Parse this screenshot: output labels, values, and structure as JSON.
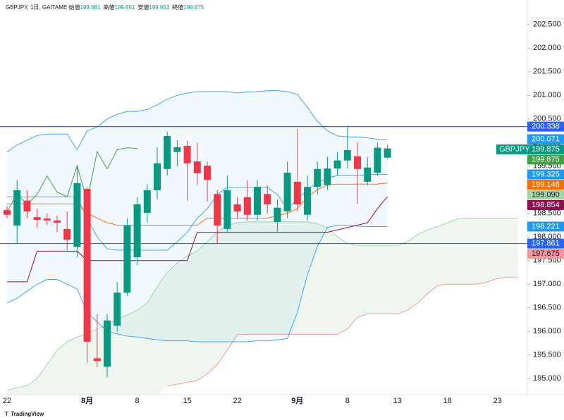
{
  "header": {
    "symbol": "GBPJPY, 1日, GAITAME",
    "items": [
      {
        "label": "始値",
        "value": "199.681"
      },
      {
        "label": "高値",
        "value": "199.951"
      },
      {
        "label": "安値",
        "value": "199.653"
      },
      {
        "label": "終値",
        "value": "199.875"
      }
    ]
  },
  "footer": "TradingView",
  "chart_data": {
    "type": "candlestick",
    "up_color": "#089981",
    "down_color": "#f23645",
    "ylim": [
      194.66,
      203.02
    ],
    "yticks": [
      {
        "value": 195,
        "label": "195.000"
      },
      {
        "value": 195.5,
        "label": "195.500"
      },
      {
        "value": 196,
        "label": "196.000"
      },
      {
        "value": 196.5,
        "label": "196.500"
      },
      {
        "value": 197,
        "label": "197.000"
      },
      {
        "value": 197.5,
        "label": "197.500"
      },
      {
        "value": 198,
        "label": "198.000"
      },
      {
        "value": 198.5,
        "label": "198.500"
      },
      {
        "value": 199,
        "label": "199.000"
      },
      {
        "value": 199.5,
        "label": "199.500"
      },
      {
        "value": 200,
        "label": "200.000"
      },
      {
        "value": 200.5,
        "label": "200.500"
      },
      {
        "value": 201,
        "label": "201.000"
      },
      {
        "value": 201.5,
        "label": "201.500"
      },
      {
        "value": 202,
        "label": "202.000"
      },
      {
        "value": 202.5,
        "label": "202.500"
      }
    ],
    "categories": [
      "22",
      null,
      null,
      null,
      null,
      null,
      null,
      null,
      "8月",
      null,
      null,
      null,
      null,
      "8",
      null,
      null,
      null,
      null,
      "15",
      null,
      null,
      null,
      null,
      "22",
      null,
      null,
      null,
      null,
      null,
      "9月",
      null,
      null,
      null,
      null,
      "8",
      null,
      null,
      null,
      null,
      "13",
      null,
      null,
      null,
      null,
      "18",
      null,
      null,
      null,
      null,
      "23",
      null,
      null
    ],
    "open": [
      198.57,
      198.24,
      198.77,
      198.42,
      198.39,
      198.35,
      198.17,
      197.79,
      199.02,
      195.43,
      195.25,
      196.12,
      196.82,
      197.57,
      198.51,
      198.99,
      199.44,
      199.8,
      199.93,
      199.6,
      199.51,
      198.91,
      198.17,
      198.69,
      198.84,
      198.47,
      198.91,
      198.32,
      198.54,
      199.17,
      198.47,
      199.06,
      199.1,
      199.45,
      199.62,
      199.71,
      199.17,
      199.36,
      199.681,
      null,
      null,
      null,
      null,
      null,
      null,
      null,
      null,
      null,
      null,
      null,
      null,
      null
    ],
    "high": [
      198.65,
      199.21,
      198.99,
      198.6,
      198.5,
      198.45,
      198.54,
      199.51,
      199.06,
      196.37,
      196.37,
      197.05,
      198.39,
      198.84,
      199.12,
      199.9,
      200.23,
      200.05,
      200.04,
      200.0,
      199.6,
      199.0,
      199.3,
      198.84,
      199.2,
      199.2,
      199.1,
      198.8,
      199.6,
      200.29,
      199.3,
      199.6,
      199.7,
      199.8,
      200.33,
      200.0,
      199.7,
      200.0,
      199.951,
      null,
      null,
      null,
      null,
      null,
      null,
      null,
      null,
      null,
      null,
      null,
      null,
      null
    ],
    "low": [
      198.4,
      197.87,
      198.39,
      198.2,
      198.25,
      198.1,
      197.72,
      197.57,
      195.33,
      195.25,
      195.03,
      196.0,
      196.75,
      197.4,
      198.3,
      198.8,
      199.3,
      199.5,
      198.77,
      199.1,
      198.75,
      197.87,
      198.1,
      198.4,
      198.35,
      198.35,
      198.5,
      198.1,
      198.4,
      198.55,
      198.35,
      198.9,
      199.0,
      199.3,
      199.45,
      198.7,
      199.1,
      199.3,
      199.653,
      null,
      null,
      null,
      null,
      null,
      null,
      null,
      null,
      null,
      null,
      null,
      null,
      null
    ],
    "close": [
      198.47,
      198.99,
      198.54,
      198.36,
      198.35,
      198.3,
      197.94,
      199.14,
      195.78,
      195.37,
      196.23,
      196.82,
      198.24,
      198.69,
      198.99,
      199.56,
      200.14,
      199.9,
      199.56,
      199.35,
      199.21,
      198.24,
      198.99,
      198.54,
      198.47,
      199.06,
      198.69,
      198.62,
      199.36,
      198.69,
      199.06,
      199.44,
      199.45,
      199.62,
      199.84,
      199.44,
      199.47,
      199.89,
      199.875,
      null,
      null,
      null,
      null,
      null,
      null,
      null,
      null,
      null,
      null,
      null,
      null,
      null
    ],
    "bollinger": {
      "line_color": "#42a5f5",
      "fill": "rgba(33,150,243,0.06)",
      "upper": [
        199.8,
        199.95,
        200.05,
        200.15,
        200.18,
        200.18,
        200.18,
        199.85,
        200.25,
        200.33,
        200.5,
        200.6,
        200.66,
        200.66,
        200.7,
        200.8,
        200.92,
        201.0,
        201.05,
        201.08,
        201.08,
        201.08,
        201.08,
        201.05,
        201.07,
        201.08,
        201.1,
        201.1,
        201.08,
        201.02,
        200.75,
        200.45,
        200.25,
        200.14,
        200.12,
        200.12,
        200.1,
        200.07,
        200.071,
        null,
        null,
        null,
        null,
        null,
        null,
        null,
        null,
        null,
        null,
        null,
        null,
        null
      ],
      "middle": [
        198.85,
        198.85,
        198.85,
        198.85,
        198.85,
        198.85,
        198.85,
        198.85,
        198.4,
        198.0,
        197.75,
        197.72,
        197.72,
        197.72,
        197.72,
        197.72,
        197.72,
        197.9,
        198.1,
        198.4,
        198.6,
        198.9,
        199.05,
        199.05,
        199.05,
        199.05,
        199.05,
        198.9,
        198.6,
        198.8,
        199.0,
        199.15,
        199.25,
        199.3,
        199.3,
        199.3,
        199.32,
        199.33,
        199.325,
        null,
        null,
        null,
        null,
        null,
        null,
        null,
        null,
        null,
        null,
        null,
        null,
        null
      ],
      "lower": [
        196.6,
        196.7,
        196.85,
        197.0,
        197.1,
        197.1,
        197.0,
        196.9,
        196.4,
        196.2,
        196.0,
        195.95,
        195.9,
        195.88,
        195.85,
        195.82,
        195.8,
        195.8,
        195.8,
        195.78,
        195.78,
        195.78,
        195.78,
        195.78,
        195.78,
        195.8,
        195.8,
        195.82,
        195.85,
        196.4,
        197.2,
        197.8,
        198.2,
        198.25,
        198.25,
        198.23,
        198.22,
        198.22,
        198.221,
        null,
        null,
        null,
        null,
        null,
        null,
        null,
        null,
        null,
        null,
        null,
        null,
        null
      ]
    },
    "ichimoku": {
      "conversion_color": "#880e4f",
      "base_color": "#ff6d00",
      "lagging_color": "#43a047",
      "span_a_color": "#a5d6a7",
      "span_b_color": "#ef9a9a",
      "cloud_fill": "rgba(67,160,71,0.09)",
      "conversion": [
        197.05,
        197.05,
        197.05,
        197.7,
        197.7,
        197.7,
        197.7,
        197.7,
        197.5,
        197.5,
        197.5,
        197.5,
        197.5,
        197.5,
        197.5,
        197.5,
        197.5,
        197.5,
        197.5,
        198.1,
        198.1,
        198.1,
        198.1,
        198.1,
        198.1,
        198.1,
        198.1,
        198.1,
        198.1,
        198.1,
        198.1,
        198.1,
        198.1,
        198.15,
        198.2,
        198.25,
        198.3,
        198.6,
        198.854,
        null,
        null,
        null,
        null,
        null,
        null,
        null,
        null,
        null,
        null,
        null,
        null,
        null
      ],
      "base": [
        198.7,
        198.7,
        198.7,
        198.7,
        198.7,
        198.7,
        198.7,
        198.7,
        198.5,
        198.4,
        198.3,
        198.25,
        198.25,
        198.25,
        198.25,
        198.25,
        198.25,
        198.25,
        198.25,
        198.25,
        198.4,
        198.4,
        198.4,
        198.4,
        198.4,
        198.4,
        198.4,
        198.45,
        198.5,
        198.6,
        198.85,
        199.0,
        199.1,
        199.12,
        199.12,
        199.12,
        199.12,
        199.12,
        199.146,
        null,
        null,
        null,
        null,
        null,
        null,
        null,
        null,
        null,
        null,
        null,
        null,
        null
      ],
      "lagging": [
        198.54,
        198.91,
        198.69,
        198.9,
        199.29,
        198.95,
        198.85,
        199.51,
        198.77,
        199.81,
        199.44,
        199.85,
        199.89,
        199.875,
        null,
        null,
        null,
        null,
        null,
        null,
        null,
        null,
        null,
        null,
        null,
        null,
        null,
        null,
        null,
        null,
        null,
        null,
        null,
        null,
        null,
        null,
        null,
        null,
        null,
        null,
        null,
        null,
        null,
        null,
        null,
        null,
        null,
        null,
        null,
        null,
        null,
        null
      ],
      "span_a": [
        194.76,
        194.8,
        194.85,
        195.0,
        195.3,
        195.6,
        195.78,
        195.88,
        195.95,
        196.05,
        196.15,
        196.25,
        196.35,
        196.45,
        196.6,
        196.95,
        197.25,
        197.45,
        197.6,
        197.7,
        197.9,
        198.1,
        198.25,
        198.3,
        198.32,
        198.32,
        198.32,
        198.32,
        198.32,
        198.32,
        198.32,
        198.28,
        198.2,
        198.0,
        197.87,
        197.82,
        197.82,
        197.82,
        197.82,
        197.82,
        197.9,
        198.05,
        198.15,
        198.22,
        198.3,
        198.38,
        198.4,
        198.4,
        198.4,
        198.4,
        198.4,
        198.4
      ],
      "span_b": [
        null,
        null,
        null,
        null,
        null,
        null,
        null,
        null,
        null,
        null,
        null,
        null,
        null,
        null,
        null,
        null,
        194.84,
        194.88,
        194.92,
        194.96,
        195.1,
        195.3,
        195.6,
        195.93,
        195.94,
        195.94,
        195.94,
        195.94,
        195.94,
        195.94,
        195.94,
        195.94,
        195.94,
        195.94,
        196.05,
        196.3,
        196.37,
        196.37,
        196.37,
        196.37,
        196.45,
        196.6,
        196.8,
        196.97,
        197.0,
        197.0,
        197.0,
        197.0,
        197.05,
        197.12,
        197.15,
        197.15
      ]
    },
    "hlines": [
      {
        "value": 200.338,
        "color": "#2962ff"
      },
      {
        "value": 197.861,
        "color": "#2962ff"
      }
    ],
    "price_tags": [
      {
        "value": 200.338,
        "label": "200.338",
        "color": "#2962ff",
        "text_color": "#ffffff"
      },
      {
        "value": 200.071,
        "label": "200.071",
        "color": "#2196f3",
        "text_color": "#ffffff"
      },
      {
        "value": 199.875,
        "label": "199.875",
        "symbol": "GBPJPY",
        "color": "#089981",
        "text_color": "#ffffff"
      },
      {
        "value": 199.875,
        "label": "199.875",
        "color": "#43a047",
        "text_color": "#ffffff"
      },
      {
        "value": 199.325,
        "label": "199.325",
        "color": "#2196f3",
        "text_color": "#ffffff"
      },
      {
        "value": 199.146,
        "label": "199.146",
        "color": "#ff6d00",
        "text_color": "#ffffff"
      },
      {
        "value": 199.09,
        "label": "199.090",
        "color": "#a5d6a7",
        "text_color": "#131722"
      },
      {
        "value": 198.854,
        "label": "198.854",
        "color": "#880e4f",
        "text_color": "#ffffff"
      },
      {
        "value": 198.221,
        "label": "198.221",
        "color": "#2196f3",
        "text_color": "#ffffff"
      },
      {
        "value": 197.861,
        "label": "197.861",
        "color": "#2962ff",
        "text_color": "#ffffff"
      },
      {
        "value": 197.675,
        "label": "197.675",
        "color": "#ef9a9a",
        "text_color": "#131722"
      }
    ]
  }
}
